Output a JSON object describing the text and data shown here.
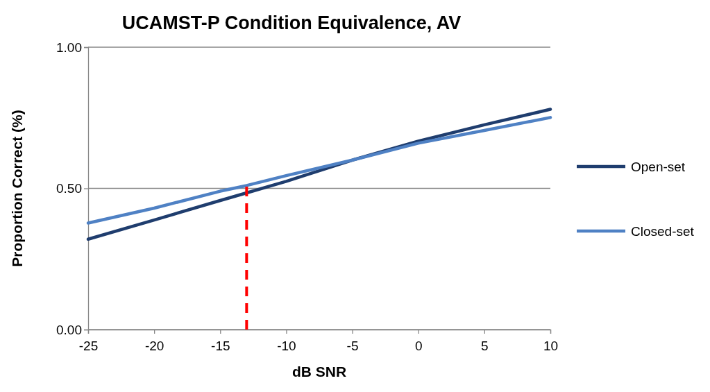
{
  "chart_data": {
    "type": "line",
    "title": "UCAMST-P Condition Equivalence, AV",
    "xlabel": "dB SNR",
    "ylabel": "Proportion Correct (%)",
    "x": [
      -25,
      -20,
      -15,
      -13,
      -10,
      -5,
      0,
      5,
      10
    ],
    "series": [
      {
        "name": "Open-set",
        "color": "#1f3d6e",
        "values": [
          0.32,
          0.388,
          0.457,
          0.484,
          0.525,
          0.6,
          0.667,
          0.725,
          0.78
        ]
      },
      {
        "name": "Closed-set",
        "color": "#4f81c4",
        "values": [
          0.377,
          0.43,
          0.49,
          0.51,
          0.545,
          0.6,
          0.66,
          0.705,
          0.751
        ]
      }
    ],
    "xlim": [
      -25,
      10
    ],
    "xticks": [
      -25,
      -20,
      -15,
      -10,
      -5,
      0,
      5,
      10
    ],
    "ylim": [
      0,
      1
    ],
    "yticks": [
      {
        "value": 0,
        "label": "0.00"
      },
      {
        "value": 0.5,
        "label": "0.50"
      },
      {
        "value": 1,
        "label": "1.00"
      }
    ],
    "ref_lines": [
      {
        "axis": "x",
        "value": -13,
        "color": "#ff0000",
        "line_style": "dashed"
      }
    ],
    "grid": "y",
    "legend": "right",
    "marker": "none",
    "line_style": "solid"
  }
}
